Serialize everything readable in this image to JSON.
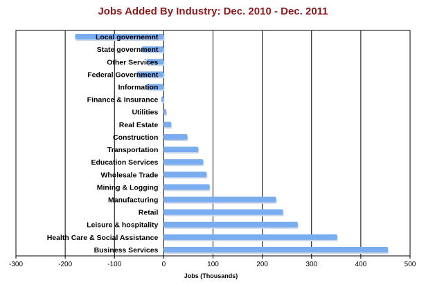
{
  "chart_data": {
    "type": "bar",
    "orientation": "horizontal",
    "title": "Jobs Added By Industry: Dec. 2010 - Dec. 2011",
    "xlabel": "Jobs (Thousands)",
    "ylabel": "",
    "xlim": [
      -300,
      500
    ],
    "xticks": [
      -300,
      -200,
      -100,
      0,
      100,
      200,
      300,
      400,
      500
    ],
    "grid": "vertical",
    "bar_color": "#7aacf0",
    "title_color": "#8b1a1a",
    "categories": [
      "Local governemnt",
      "State government",
      "Other Services",
      "Federal Government",
      "Information",
      "Finance & Insurance",
      "Utilities",
      "Real Estate",
      "Construction",
      "Transportation",
      "Education Services",
      "Wholesale Trade",
      "Mining & Logging",
      "Manufacturing",
      "Retail",
      "Leisure & hospitality",
      "Health Care & Social Assistance",
      "Business Services"
    ],
    "values": [
      -180,
      -45,
      -35,
      -55,
      -35,
      -5,
      5,
      15,
      48,
      70,
      80,
      87,
      93,
      228,
      242,
      272,
      352,
      455
    ]
  }
}
